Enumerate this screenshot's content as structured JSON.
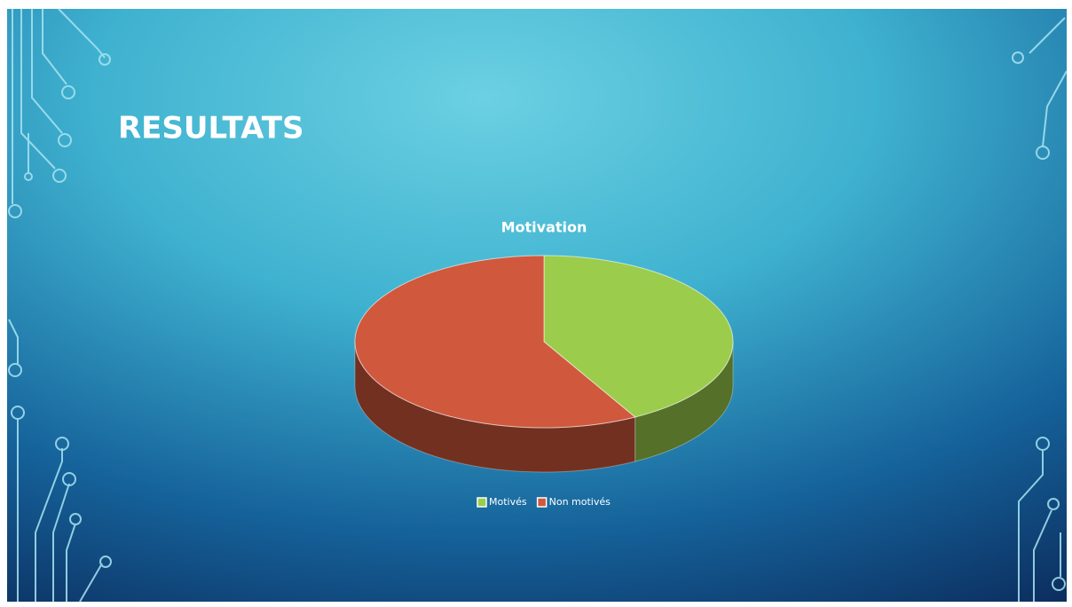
{
  "slide_title": "RESULTATS",
  "chart_data": {
    "type": "pie",
    "title": "Motivation",
    "categories": [
      "Motivés",
      "Non motivés"
    ],
    "values": [
      42,
      58
    ],
    "colors": [
      "#9ccc4b",
      "#d0583c"
    ],
    "legend": "bottom"
  }
}
